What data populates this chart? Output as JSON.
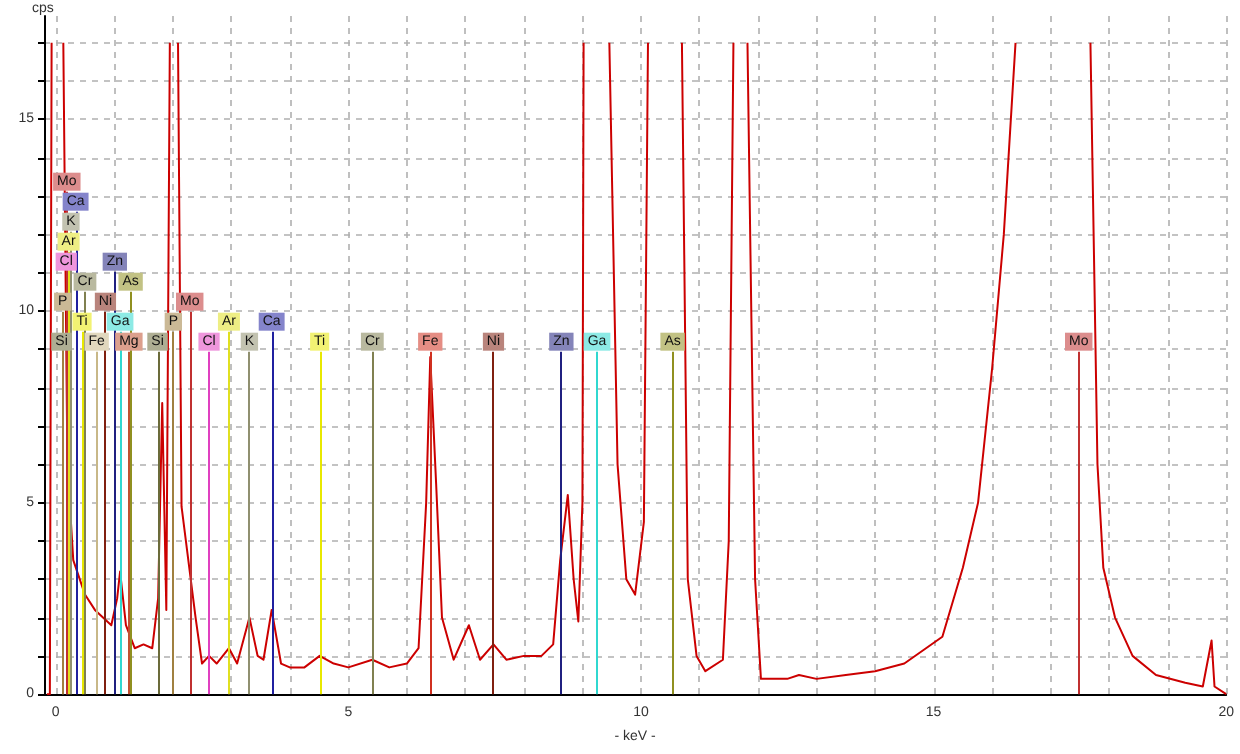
{
  "chart_data": {
    "type": "line",
    "xlabel": "- keV -",
    "ylabel": "cps",
    "xlim": [
      -0.2,
      20
    ],
    "ylim": [
      0,
      17.7
    ],
    "xticks": [
      0,
      {
        "value": 1,
        "label": null
      },
      {
        "value": 2,
        "label": null
      },
      {
        "value": 3,
        "label": null
      },
      {
        "value": 4,
        "label": null
      },
      5,
      {
        "value": 6,
        "label": null
      },
      {
        "value": 7,
        "label": null
      },
      {
        "value": 8,
        "label": null
      },
      {
        "value": 9,
        "label": null
      },
      10,
      {
        "value": 11,
        "label": null
      },
      {
        "value": 12,
        "label": null
      },
      {
        "value": 13,
        "label": null
      },
      {
        "value": 14,
        "label": null
      },
      15,
      {
        "value": 16,
        "label": null
      },
      {
        "value": 17,
        "label": null
      },
      {
        "value": 18,
        "label": null
      },
      {
        "value": 19,
        "label": null
      },
      20
    ],
    "yticks": [
      0,
      {
        "value": 1,
        "label": null
      },
      {
        "value": 2,
        "label": null
      },
      {
        "value": 3,
        "label": null
      },
      {
        "value": 4,
        "label": null
      },
      {
        "value": 5,
        "label": "5"
      },
      {
        "value": 6,
        "label": null
      },
      {
        "value": 7,
        "label": null
      },
      {
        "value": 8,
        "label": null
      },
      {
        "value": 9,
        "label": null
      },
      10,
      {
        "value": 11,
        "label": null
      },
      {
        "value": 12,
        "label": null
      },
      {
        "value": 13,
        "label": null
      },
      {
        "value": 14,
        "label": null
      },
      15,
      {
        "value": 16,
        "label": null
      },
      {
        "value": 17,
        "label": null
      }
    ],
    "grid": true,
    "x": [
      -0.15,
      -0.1,
      -0.07,
      0.03,
      0.13,
      0.2,
      0.3,
      0.5,
      0.67,
      0.95,
      1.05,
      1.1,
      1.2,
      1.35,
      1.5,
      1.65,
      1.75,
      1.82,
      1.89,
      1.95,
      2.02,
      2.09,
      2.15,
      2.39,
      2.5,
      2.62,
      2.75,
      2.96,
      3.1,
      3.31,
      3.45,
      3.55,
      3.69,
      3.85,
      4.0,
      4.25,
      4.51,
      4.75,
      5.0,
      5.41,
      5.7,
      6.0,
      6.2,
      6.33,
      6.4,
      6.5,
      6.6,
      6.8,
      7.06,
      7.25,
      7.48,
      7.7,
      8.0,
      8.3,
      8.5,
      8.62,
      8.75,
      8.85,
      8.93,
      9.0,
      9.02,
      9.24,
      9.46,
      9.6,
      9.75,
      9.9,
      10.05,
      10.12,
      10.4,
      10.7,
      10.8,
      10.95,
      11.1,
      11.4,
      11.5,
      11.58,
      11.7,
      11.82,
      11.95,
      12.05,
      12.5,
      12.7,
      13.0,
      13.5,
      14.0,
      14.5,
      15.15,
      15.5,
      15.76,
      16.0,
      16.2,
      16.4,
      17.0,
      17.68,
      17.8,
      17.9,
      18.1,
      18.4,
      18.8,
      19.3,
      19.6,
      19.75,
      19.8,
      20.0
    ],
    "series": [
      {
        "color": "#cc0000",
        "values": [
          0,
          0,
          17,
          null,
          17,
          6,
          3.5,
          2.6,
          2.2,
          1.8,
          2.5,
          3.2,
          1.8,
          1.2,
          1.3,
          1.2,
          2.5,
          7.6,
          2.2,
          17,
          null,
          17,
          4.9,
          2.0,
          0.8,
          1.0,
          0.8,
          1.2,
          0.8,
          2.0,
          1.0,
          0.9,
          2.2,
          0.8,
          0.7,
          0.7,
          1.0,
          0.8,
          0.7,
          0.9,
          0.7,
          0.8,
          1.2,
          5,
          8.8,
          5.5,
          2.0,
          0.9,
          1.8,
          0.9,
          1.3,
          0.9,
          1.0,
          1.0,
          1.3,
          3.5,
          5.2,
          3.0,
          1.9,
          5,
          17,
          null,
          17,
          6,
          3.0,
          2.6,
          4.5,
          17,
          null,
          17,
          3,
          1.0,
          0.6,
          0.9,
          4,
          17,
          null,
          17,
          3,
          0.4,
          0.4,
          0.5,
          0.4,
          0.5,
          0.6,
          0.8,
          1.5,
          3.3,
          5.0,
          8.5,
          12,
          17,
          null,
          17,
          6,
          3.3,
          2.0,
          1.0,
          0.5,
          0.3,
          0.2,
          1.4,
          0.2,
          0
        ]
      }
    ],
    "ref_lines": [
      {
        "axis": "x",
        "value": 0.1,
        "label": "Si",
        "color": "#6b6b3a"
      },
      {
        "axis": "x",
        "value": 0.45,
        "label": "Ti",
        "color": "#e8e800"
      },
      {
        "axis": "x",
        "value": 0.7,
        "label": "Fe",
        "color": "#c8b888"
      },
      {
        "axis": "x",
        "value": 1.1,
        "label": "Ga",
        "color": "#30d8d0"
      },
      {
        "axis": "x",
        "value": 1.74,
        "label": "Si",
        "color": "#6b6b3a"
      },
      {
        "axis": "x",
        "value": 2.01,
        "label": "P",
        "color": "#a08040"
      },
      {
        "axis": "x",
        "value": 2.62,
        "label": "Cl",
        "color": "#e040c0"
      },
      {
        "axis": "x",
        "value": 2.96,
        "label": "Ar",
        "color": "#e0e020"
      },
      {
        "axis": "x",
        "value": 3.31,
        "label": "K",
        "color": "#909070"
      },
      {
        "axis": "x",
        "value": 3.69,
        "label": "Ca",
        "color": "#2020a0"
      },
      {
        "axis": "x",
        "value": 4.51,
        "label": "Ti",
        "color": "#e8e800"
      },
      {
        "axis": "x",
        "value": 5.41,
        "label": "Cr",
        "color": "#808050"
      },
      {
        "axis": "x",
        "value": 6.4,
        "label": "Fe",
        "color": "#d03020"
      },
      {
        "axis": "x",
        "value": 7.48,
        "label": "Ni",
        "color": "#802010"
      },
      {
        "axis": "x",
        "value": 8.64,
        "label": "Zn",
        "color": "#202080"
      },
      {
        "axis": "x",
        "value": 9.25,
        "label": "Ga",
        "color": "#30d8d0"
      },
      {
        "axis": "x",
        "value": 10.54,
        "label": "As",
        "color": "#909020"
      },
      {
        "axis": "x",
        "value": 17.48,
        "label": "Mo",
        "color": "#c03030"
      },
      {
        "axis": "x",
        "value": 0.12,
        "label": "P",
        "color": "#a08040"
      },
      {
        "axis": "x",
        "value": 0.5,
        "label": "Cr",
        "color": "#808050"
      },
      {
        "axis": "x",
        "value": 0.85,
        "label": "Ni",
        "color": "#802010"
      },
      {
        "axis": "x",
        "value": 1.28,
        "label": "As",
        "color": "#909020"
      },
      {
        "axis": "x",
        "value": 0.18,
        "label": "Cl",
        "color": "#e040c0"
      },
      {
        "axis": "x",
        "value": 1.01,
        "label": "Zn",
        "color": "#202080"
      },
      {
        "axis": "x",
        "value": 1.25,
        "label": "Mg",
        "color": "#c05030"
      },
      {
        "axis": "x",
        "value": 0.22,
        "label": "Ar",
        "color": "#e0e020"
      },
      {
        "axis": "x",
        "value": 0.26,
        "label": "K",
        "color": "#909070"
      },
      {
        "axis": "x",
        "value": 0.34,
        "label": "Ca",
        "color": "#2020a0"
      },
      {
        "axis": "x",
        "value": 0.19,
        "label": "Mo",
        "color": "#c03030"
      },
      {
        "axis": "x",
        "value": 2.29,
        "label": "Mo",
        "color": "#c03030"
      }
    ]
  }
}
